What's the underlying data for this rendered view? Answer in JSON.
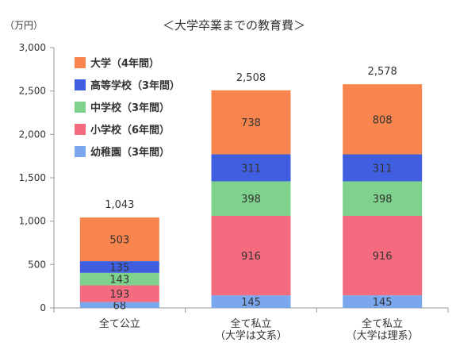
{
  "chart_data": {
    "type": "bar",
    "stacked": true,
    "title": "＜大学卒業までの教育費＞",
    "unit_label": "（万円）",
    "categories": [
      [
        "全て公立"
      ],
      [
        "全て私立",
        "（大学は文系）"
      ],
      [
        "全て私立",
        "（大学は理系）"
      ]
    ],
    "totals": [
      "1,043",
      "2,508",
      "2,578"
    ],
    "total_values": [
      1043,
      2508,
      2578
    ],
    "ylim": [
      0,
      3000
    ],
    "yticks": [
      0,
      500,
      1000,
      1500,
      2000,
      2500,
      3000
    ],
    "ytick_labels": [
      "0",
      "500",
      "1,000",
      "1,500",
      "2,000",
      "2,500",
      "3,000"
    ],
    "grid": false,
    "legend_position": "top-left",
    "legend_order": [
      4,
      3,
      2,
      1,
      0
    ],
    "series": [
      {
        "name": "幼稚園（3年間）",
        "color": "#7aa7ee",
        "values": [
          68,
          145,
          145
        ]
      },
      {
        "name": "小学校（6年間）",
        "color": "#f46a7e",
        "values": [
          193,
          916,
          916
        ]
      },
      {
        "name": "中学校（3年間）",
        "color": "#7ed28c",
        "values": [
          143,
          398,
          398
        ]
      },
      {
        "name": "高等学校（3年間）",
        "color": "#3f5fe0",
        "values": [
          135,
          311,
          311
        ]
      },
      {
        "name": "大学（4年間）",
        "color": "#f8854d",
        "values": [
          503,
          738,
          808
        ]
      }
    ]
  }
}
